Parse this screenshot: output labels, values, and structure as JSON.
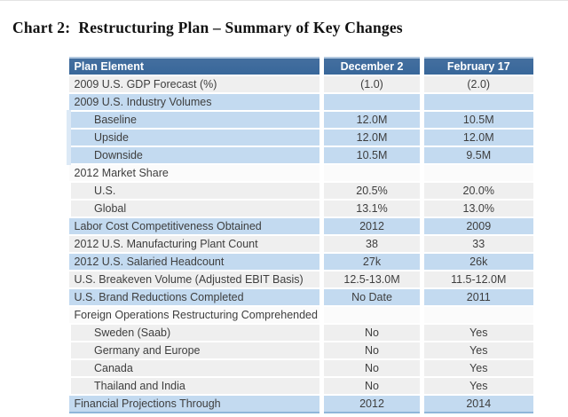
{
  "page_title": "Chart 2:  Restructuring Plan – Summary of Key Changes",
  "colors": {
    "header_bg": "#38679a",
    "header_text": "#ffffff",
    "blue_row": "#c3daf0",
    "gray_row": "#efefef",
    "white_row": "#fbfbfb",
    "body_text": "#3e3e3e",
    "table_bottom_border": "#8fb6da"
  },
  "table": {
    "columns": [
      "Plan Element",
      "December 2",
      "February 17"
    ],
    "rows": [
      {
        "label": "2009 U.S. GDP Forecast (%)",
        "dec2": "(1.0)",
        "feb17": "(2.0)",
        "band": "gray",
        "indent": false
      },
      {
        "label": "2009 U.S. Industry Volumes",
        "dec2": "",
        "feb17": "",
        "band": "blue",
        "indent": false
      },
      {
        "label": "Baseline",
        "dec2": "12.0M",
        "feb17": "10.5M",
        "band": "blue",
        "indent": true
      },
      {
        "label": "Upside",
        "dec2": "12.0M",
        "feb17": "12.0M",
        "band": "blue",
        "indent": true
      },
      {
        "label": "Downside",
        "dec2": "10.5M",
        "feb17": "9.5M",
        "band": "blue",
        "indent": true
      },
      {
        "label": "2012 Market Share",
        "dec2": "",
        "feb17": "",
        "band": "white",
        "indent": false
      },
      {
        "label": "U.S.",
        "dec2": "20.5%",
        "feb17": "20.0%",
        "band": "gray",
        "indent": true
      },
      {
        "label": "Global",
        "dec2": "13.1%",
        "feb17": "13.0%",
        "band": "gray",
        "indent": true
      },
      {
        "label": "Labor Cost Competitiveness Obtained",
        "dec2": "2012",
        "feb17": "2009",
        "band": "blue",
        "indent": false
      },
      {
        "label": "2012 U.S. Manufacturing Plant Count",
        "dec2": "38",
        "feb17": "33",
        "band": "gray",
        "indent": false
      },
      {
        "label": "2012 U.S. Salaried Headcount",
        "dec2": "27k",
        "feb17": "26k",
        "band": "blue",
        "indent": false
      },
      {
        "label": "U.S. Breakeven Volume (Adjusted EBIT Basis)",
        "dec2": "12.5-13.0M",
        "feb17": "11.5-12.0M",
        "band": "gray",
        "indent": false
      },
      {
        "label": "U.S. Brand Reductions Completed",
        "dec2": "No Date",
        "feb17": "2011",
        "band": "blue",
        "indent": false
      },
      {
        "label": "Foreign Operations Restructuring Comprehended",
        "dec2": "",
        "feb17": "",
        "band": "white",
        "indent": false
      },
      {
        "label": "Sweden (Saab)",
        "dec2": "No",
        "feb17": "Yes",
        "band": "gray",
        "indent": true
      },
      {
        "label": "Germany and Europe",
        "dec2": "No",
        "feb17": "Yes",
        "band": "gray",
        "indent": true
      },
      {
        "label": "Canada",
        "dec2": "No",
        "feb17": "Yes",
        "band": "gray",
        "indent": true
      },
      {
        "label": "Thailand and India",
        "dec2": "No",
        "feb17": "Yes",
        "band": "gray",
        "indent": true
      },
      {
        "label": "Financial Projections Through",
        "dec2": "2012",
        "feb17": "2014",
        "band": "blue",
        "indent": false
      }
    ]
  }
}
